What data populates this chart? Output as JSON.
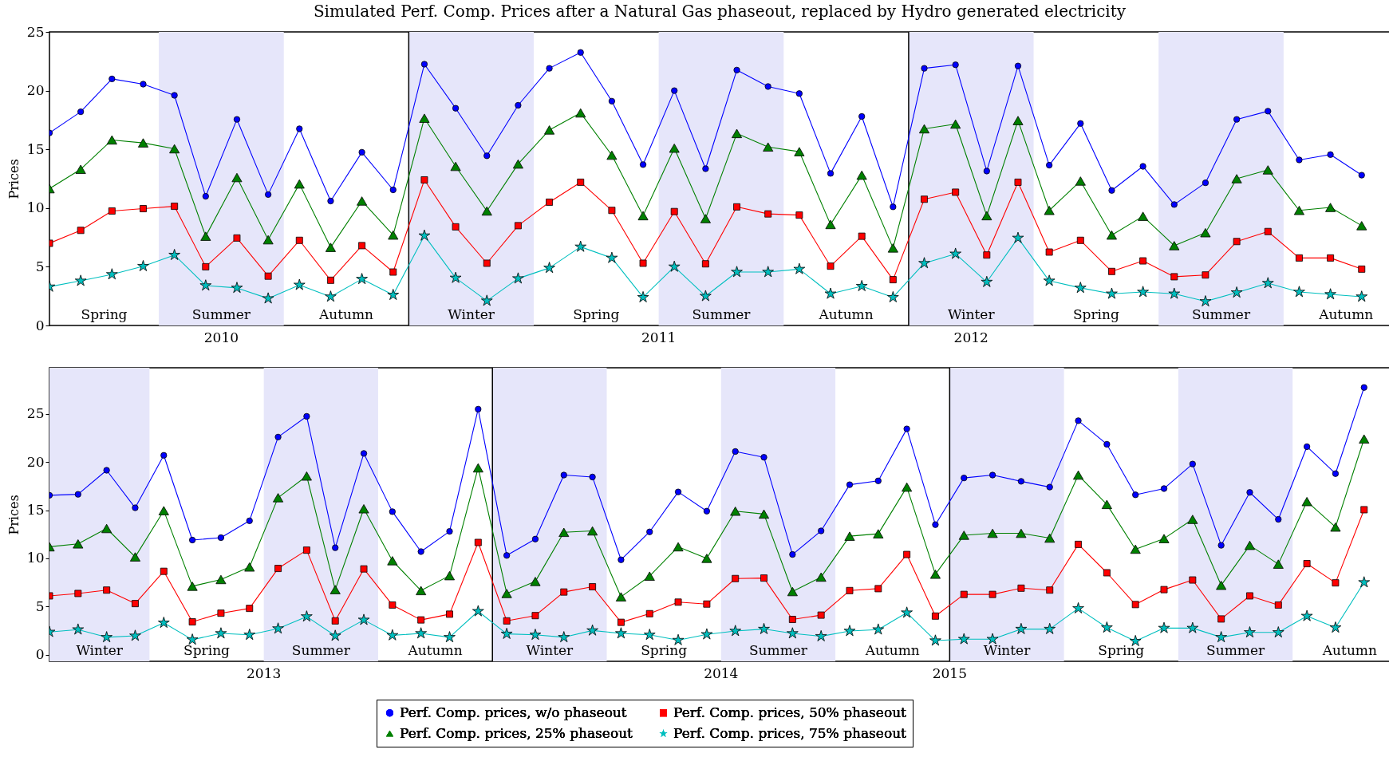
{
  "chart_data": [
    {
      "type": "line",
      "title": "Simulated Perf. Comp. Prices after a Natural Gas phaseout, replaced by Hydro generated electricity",
      "ylabel": "Prices",
      "categories": [
        null,
        null,
        null,
        null,
        null,
        null,
        null,
        null,
        null,
        null,
        null,
        null,
        null,
        null,
        null,
        null,
        null,
        null,
        null,
        null,
        null,
        null,
        null,
        null,
        null,
        null,
        null,
        null,
        null,
        null,
        null,
        null,
        null,
        null,
        null,
        null,
        null,
        null,
        null,
        null,
        null,
        null,
        null
      ],
      "ylim": [
        0,
        25
      ],
      "yticks": [
        0,
        5,
        10,
        15,
        20,
        25
      ],
      "tick_labels": "y",
      "series": [
        {
          "color": "#0000ff",
          "marker": "circle",
          "values": [
            16.4,
            18.2,
            21.0,
            20.55,
            19.6,
            11.0,
            17.55,
            11.15,
            16.75,
            10.6,
            14.75,
            11.55,
            22.25,
            18.5,
            14.45,
            18.75,
            21.9,
            23.25,
            19.1,
            13.7,
            20.0,
            13.35,
            21.75,
            20.35,
            19.75,
            12.95,
            17.8,
            10.1,
            21.9,
            22.2,
            13.15,
            22.1,
            13.65,
            17.2,
            11.5,
            13.55,
            10.3,
            12.15,
            17.55,
            18.25,
            14.1,
            14.55,
            12.8
          ]
        },
        {
          "color": "#008000",
          "marker": "triangle",
          "values": [
            11.65,
            13.3,
            15.8,
            15.55,
            15.05,
            7.6,
            12.6,
            7.3,
            12.05,
            6.65,
            10.6,
            7.7,
            17.65,
            13.55,
            9.75,
            13.75,
            16.65,
            18.1,
            14.5,
            9.35,
            15.1,
            9.1,
            16.35,
            15.2,
            14.8,
            8.6,
            12.8,
            6.6,
            16.75,
            17.15,
            9.35,
            17.45,
            9.8,
            12.3,
            7.7,
            9.3,
            6.8,
            7.9,
            12.5,
            13.25,
            9.8,
            10.05,
            8.5
          ]
        },
        {
          "color": "#ff0000",
          "marker": "square",
          "values": [
            7.0,
            8.1,
            9.75,
            9.95,
            10.15,
            5.0,
            7.45,
            4.2,
            7.25,
            3.85,
            6.8,
            4.55,
            12.4,
            8.4,
            5.3,
            8.5,
            10.5,
            12.2,
            9.8,
            5.3,
            9.7,
            5.25,
            10.1,
            9.5,
            9.4,
            5.05,
            7.6,
            3.9,
            10.75,
            11.35,
            6.0,
            12.2,
            6.25,
            7.25,
            4.6,
            5.5,
            4.15,
            4.3,
            7.15,
            8.0,
            5.75,
            5.75,
            4.8
          ]
        },
        {
          "color": "#00bfbf",
          "marker": "star",
          "values": [
            3.3,
            3.8,
            4.35,
            5.05,
            6.0,
            3.4,
            3.2,
            2.3,
            3.45,
            2.45,
            3.95,
            2.6,
            7.65,
            4.05,
            2.1,
            4.0,
            4.9,
            6.7,
            5.75,
            2.4,
            5.0,
            2.5,
            4.55,
            4.55,
            4.8,
            2.7,
            3.35,
            2.4,
            5.3,
            6.1,
            3.7,
            7.45,
            3.8,
            3.2,
            2.7,
            2.85,
            2.7,
            2.05,
            2.8,
            3.6,
            2.85,
            2.65,
            2.45
          ]
        }
      ],
      "annotations": [
        "Spring",
        "Summer",
        "Autumn",
        "Winter",
        "Spring",
        "Summer",
        "Autumn",
        "Winter",
        "Spring",
        "Summer",
        "Autumn",
        "2010",
        "2011",
        "2012"
      ]
    },
    {
      "type": "line",
      "ylabel": "Prices",
      "legend": "bottom",
      "categories": [
        null,
        null,
        null,
        null,
        null,
        null,
        null,
        null,
        null,
        null,
        null,
        null,
        null,
        null,
        null,
        null,
        null,
        null,
        null,
        null,
        null,
        null,
        null,
        null,
        null,
        null,
        null,
        null,
        null,
        null,
        null,
        null,
        null,
        null,
        null,
        null,
        null,
        null,
        null,
        null,
        null,
        null,
        null,
        null,
        null,
        null,
        null
      ],
      "ylim": [
        -0.7,
        29.8
      ],
      "yticks": [
        0,
        5,
        10,
        15,
        20,
        25
      ],
      "tick_labels": "y",
      "series": [
        {
          "name": "Perf. Comp. prices, w/o phaseout",
          "color": "#0000ff",
          "marker": "circle",
          "values": [
            16.55,
            16.65,
            19.15,
            15.25,
            20.7,
            11.9,
            12.15,
            13.9,
            22.6,
            24.75,
            11.1,
            20.9,
            14.85,
            10.7,
            12.8,
            25.5,
            10.3,
            12.0,
            18.65,
            18.45,
            9.85,
            12.75,
            16.9,
            14.9,
            21.1,
            20.5,
            10.4,
            12.85,
            17.65,
            18.05,
            23.45,
            13.5,
            18.35,
            18.65,
            18.0,
            17.4,
            24.3,
            21.85,
            16.6,
            17.25,
            19.8,
            11.35,
            16.85,
            14.05,
            21.6,
            18.8,
            27.75
          ]
        },
        {
          "name": "Perf. Comp. prices, 25% phaseout",
          "color": "#008000",
          "marker": "triangle",
          "values": [
            11.2,
            11.5,
            13.1,
            10.15,
            14.95,
            7.1,
            7.8,
            9.1,
            16.3,
            18.55,
            6.75,
            15.15,
            9.75,
            6.65,
            8.2,
            19.4,
            6.35,
            7.6,
            12.7,
            12.85,
            6.0,
            8.15,
            11.2,
            10.0,
            14.9,
            14.6,
            6.55,
            8.05,
            12.3,
            12.55,
            17.4,
            8.35,
            12.4,
            12.6,
            12.6,
            12.1,
            18.65,
            15.6,
            10.95,
            12.05,
            14.05,
            7.2,
            11.35,
            9.4,
            15.9,
            13.25,
            22.4
          ]
        },
        {
          "name": "Perf. Comp. prices, 50% phaseout",
          "color": "#ff0000",
          "marker": "square",
          "values": [
            6.1,
            6.35,
            6.7,
            5.3,
            8.65,
            3.4,
            4.3,
            4.8,
            8.95,
            10.85,
            3.5,
            8.9,
            5.15,
            3.6,
            4.2,
            11.65,
            3.5,
            4.05,
            6.5,
            7.05,
            3.35,
            4.25,
            5.45,
            5.25,
            7.9,
            7.95,
            3.65,
            4.1,
            6.65,
            6.85,
            10.4,
            4.0,
            6.25,
            6.25,
            6.9,
            6.7,
            11.45,
            8.5,
            5.2,
            6.75,
            7.75,
            3.7,
            6.1,
            5.15,
            9.45,
            7.45,
            15.05
          ]
        },
        {
          "name": "Perf. Comp. prices, 75% phaseout",
          "color": "#00bfbf",
          "marker": "star",
          "values": [
            2.35,
            2.6,
            1.8,
            1.95,
            3.3,
            1.55,
            2.2,
            2.05,
            2.7,
            3.95,
            1.95,
            3.6,
            2.0,
            2.2,
            1.8,
            4.5,
            2.15,
            2.05,
            1.8,
            2.5,
            2.2,
            2.05,
            1.5,
            2.1,
            2.45,
            2.65,
            2.2,
            1.9,
            2.45,
            2.6,
            4.35,
            1.45,
            1.6,
            1.6,
            2.65,
            2.65,
            4.8,
            2.8,
            1.4,
            2.75,
            2.75,
            1.8,
            2.3,
            2.3,
            4.0,
            2.8,
            7.5
          ]
        }
      ],
      "annotations": [
        "Winter",
        "Spring",
        "Summer",
        "Autumn",
        "Winter",
        "Spring",
        "Summer",
        "Autumn",
        "Winter",
        "Spring",
        "Summer",
        "Autumn",
        "2013",
        "2014",
        "2015"
      ]
    }
  ]
}
